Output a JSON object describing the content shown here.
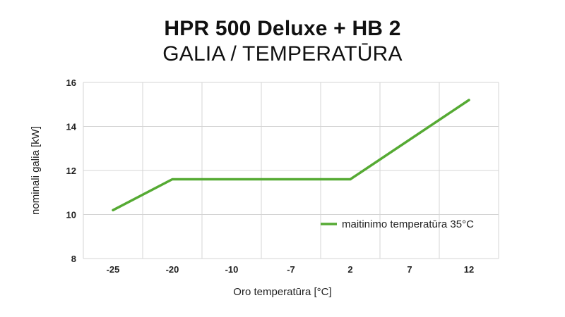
{
  "chart_data": {
    "type": "line",
    "title": "HPR 500 Deluxe + HB 2",
    "subtitle": "GALIA / TEMPERATŪRA",
    "xlabel": "Oro temperatūra [°C]",
    "ylabel": "nominali galia [kW]",
    "categories": [
      "-25",
      "-20",
      "-10",
      "-7",
      "2",
      "7",
      "12"
    ],
    "ylim": [
      8,
      16
    ],
    "yticks": [
      8,
      10,
      12,
      14,
      16
    ],
    "grid": true,
    "legend_position": "right",
    "series": [
      {
        "name": "maitinimo temperatūra  35°C",
        "color": "#55aa33",
        "points": [
          {
            "x": "-25",
            "y": 10.2
          },
          {
            "x": "-20",
            "y": 11.6
          },
          {
            "x": "2",
            "y": 11.6
          },
          {
            "x": "12",
            "y": 15.2
          }
        ]
      }
    ]
  }
}
